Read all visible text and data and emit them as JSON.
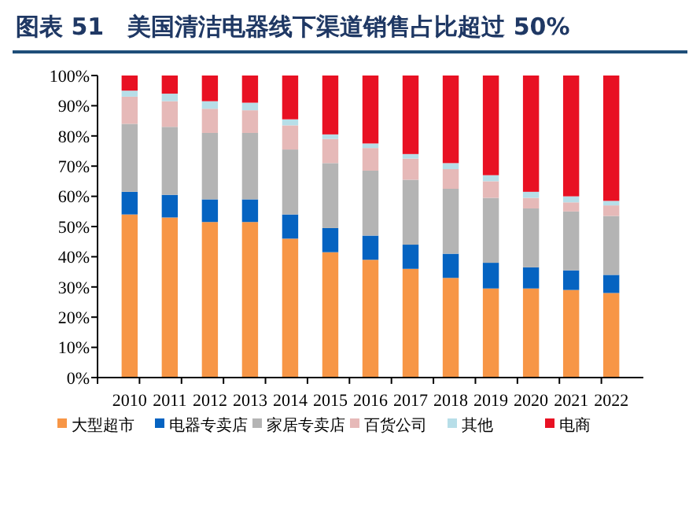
{
  "chart_data": {
    "type": "bar",
    "title": "图表 51　美国清洁电器线下渠道销售占比超过 50%",
    "stacked": true,
    "categories": [
      "2010",
      "2011",
      "2012",
      "2013",
      "2014",
      "2015",
      "2016",
      "2017",
      "2018",
      "2019",
      "2020",
      "2021",
      "2022"
    ],
    "series": [
      {
        "name": "大型超市",
        "color": "#f79646",
        "values": [
          54,
          53,
          51.5,
          51.5,
          46,
          41.5,
          39,
          36,
          33,
          29.5,
          29.5,
          29,
          28
        ]
      },
      {
        "name": "电器专卖店",
        "color": "#0563c1",
        "values": [
          7.5,
          7.5,
          7.5,
          7.5,
          8,
          8,
          8,
          8,
          8,
          8.5,
          7,
          6.5,
          6
        ]
      },
      {
        "name": "家居专卖店",
        "color": "#b4b4b4",
        "values": [
          22.5,
          22.5,
          22,
          22,
          21.5,
          21.5,
          21.5,
          21.5,
          21.5,
          21.5,
          19.5,
          19.5,
          19.5
        ]
      },
      {
        "name": "百货公司",
        "color": "#e6b9b8",
        "values": [
          9,
          8.5,
          8,
          7.5,
          8,
          8,
          7.5,
          7,
          6.5,
          5.5,
          3.5,
          3,
          3.5
        ]
      },
      {
        "name": "其他",
        "color": "#b7dee8",
        "values": [
          2,
          2.5,
          2.5,
          2.5,
          2,
          1.5,
          1.5,
          1.5,
          2,
          2,
          2,
          2,
          1.5
        ]
      },
      {
        "name": "电商",
        "color": "#e81123",
        "values": [
          5,
          6,
          8.5,
          9,
          14.5,
          19.5,
          22.5,
          26,
          29,
          33,
          38.5,
          40,
          41.5
        ]
      }
    ],
    "ylim": [
      0,
      100
    ],
    "yticks": [
      {
        "value": 0,
        "label": "0%"
      },
      {
        "value": 10,
        "label": "10%"
      },
      {
        "value": 20,
        "label": "20%"
      },
      {
        "value": 30,
        "label": "30%"
      },
      {
        "value": 40,
        "label": "40%"
      },
      {
        "value": 50,
        "label": "50%"
      },
      {
        "value": 60,
        "label": "60%"
      },
      {
        "value": 70,
        "label": "70%"
      },
      {
        "value": 80,
        "label": "80%"
      },
      {
        "value": 90,
        "label": "90%"
      },
      {
        "value": 100,
        "label": "100%"
      }
    ],
    "grid": false,
    "legend": "bottom"
  }
}
